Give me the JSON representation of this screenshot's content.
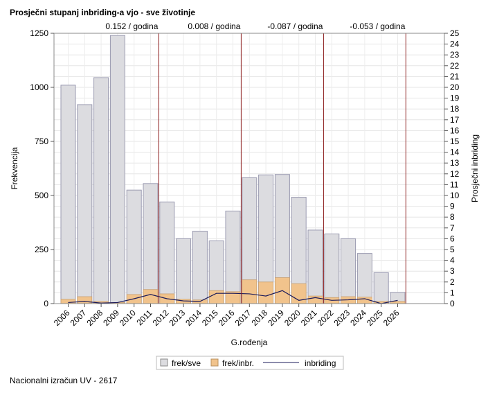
{
  "title": "Prosječni stupanj inbriding-a vjo - sve životinje",
  "footer": "Nacionalni izračun UV - 2617",
  "chart_data": {
    "type": "bar",
    "xlabel": "G.rođenja",
    "ylabel_left": "Frekvencija",
    "ylabel_right": "Prosječni inbriding",
    "ylim_left": [
      0,
      1250
    ],
    "yticks_left": [
      0,
      250,
      500,
      750,
      1000,
      1250
    ],
    "ylim_right": [
      0,
      25
    ],
    "yticks_right": [
      0,
      1,
      2,
      3,
      4,
      5,
      6,
      7,
      8,
      9,
      10,
      11,
      12,
      13,
      14,
      15,
      16,
      17,
      18,
      19,
      20,
      21,
      22,
      23,
      24,
      25
    ],
    "categories": [
      "2006",
      "2007",
      "2008",
      "2009",
      "2010",
      "2011",
      "2012",
      "2013",
      "2014",
      "2015",
      "2016",
      "2017",
      "2018",
      "2019",
      "2020",
      "2021",
      "2022",
      "2023",
      "2024",
      "2025",
      "2026"
    ],
    "series": [
      {
        "name": "frek/sve",
        "axis": "left",
        "color": "#dcdce0",
        "values": [
          1010,
          920,
          1045,
          1240,
          525,
          555,
          470,
          300,
          335,
          290,
          428,
          582,
          595,
          597,
          492,
          340,
          322,
          300,
          232,
          143,
          52
        ]
      },
      {
        "name": "frek/inbr.",
        "axis": "left",
        "color": "#f1c38c",
        "values": [
          20,
          32,
          10,
          5,
          42,
          65,
          45,
          20,
          17,
          60,
          55,
          110,
          100,
          120,
          92,
          35,
          28,
          32,
          30,
          10,
          10
        ]
      },
      {
        "name": "inbriding",
        "axis": "right",
        "color": "#1a1a5a",
        "type": "line",
        "values": [
          0.1,
          0.2,
          0.05,
          0.1,
          0.45,
          0.85,
          0.45,
          0.25,
          0.2,
          0.95,
          0.95,
          0.9,
          0.7,
          1.2,
          0.3,
          0.55,
          0.3,
          0.35,
          0.45,
          0.0,
          0.3
        ]
      }
    ],
    "trend_lines": [
      {
        "after_category": "2011",
        "label": "0.152 / godina"
      },
      {
        "after_category": "2016",
        "label": "0.008 / godina"
      },
      {
        "after_category": "2021",
        "label": "-0.087 / godina"
      },
      {
        "after_category": "2026",
        "label": "-0.053 / godina"
      }
    ],
    "grid": true,
    "legend_position": "bottom"
  }
}
